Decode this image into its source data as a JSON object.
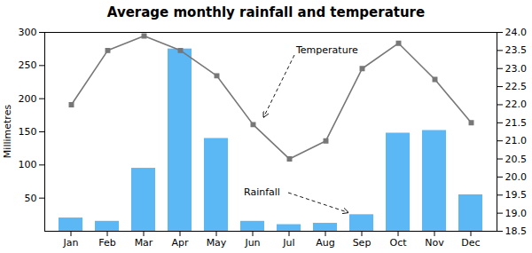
{
  "chart_data": {
    "type": "bar",
    "title": "Average monthly rainfall and temperature",
    "categories": [
      "Jan",
      "Feb",
      "Mar",
      "Apr",
      "May",
      "Jun",
      "Jul",
      "Aug",
      "Sep",
      "Oct",
      "Nov",
      "Dec"
    ],
    "series": [
      {
        "name": "Rainfall",
        "type": "bar",
        "color": "#5bb8f5",
        "values": [
          20,
          15,
          95,
          275,
          140,
          15,
          10,
          12,
          25,
          148,
          152,
          55
        ]
      },
      {
        "name": "Temperature",
        "type": "line",
        "axis": "y2",
        "color": "#777777",
        "marker": "square",
        "values": [
          22.0,
          23.5,
          23.9,
          23.5,
          22.8,
          21.45,
          20.5,
          21.0,
          23.0,
          23.7,
          22.7,
          21.5
        ]
      }
    ],
    "ylabel": "Millimetres",
    "ylim": [
      0,
      300
    ],
    "yticks": [
      50,
      100,
      150,
      200,
      250,
      300
    ],
    "y2lim": [
      18.5,
      24.0
    ],
    "y2ticks": [
      18.5,
      {
        "value": 19,
        "label": "19.0"
      },
      19.5,
      {
        "value": 20,
        "label": "20.0"
      },
      20.5,
      {
        "value": 21,
        "label": "21.0"
      },
      21.5,
      {
        "value": 22,
        "label": "22.0"
      },
      22.5,
      {
        "value": 23,
        "label": "23.0"
      },
      23.5,
      {
        "value": 24,
        "label": "24.0"
      }
    ]
  }
}
